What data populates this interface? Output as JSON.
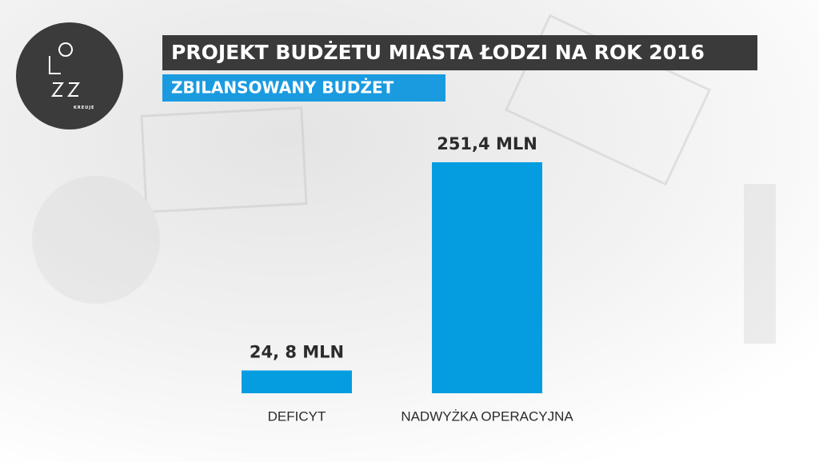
{
  "chart_data": {
    "type": "bar",
    "title": "PROJEKT BUDŻETU MIASTA ŁODZI NA ROK 2016",
    "subtitle": "ZBILANSOWANY BUDŻET",
    "logo_caption": "KREUJE",
    "categories": [
      "DEFICYT",
      "NADWYŻKA OPERACYJNA"
    ],
    "values": [
      24.8,
      251.4
    ],
    "value_labels": [
      "24, 8 MLN",
      "251,4 MLN"
    ],
    "color": "#069de0"
  }
}
